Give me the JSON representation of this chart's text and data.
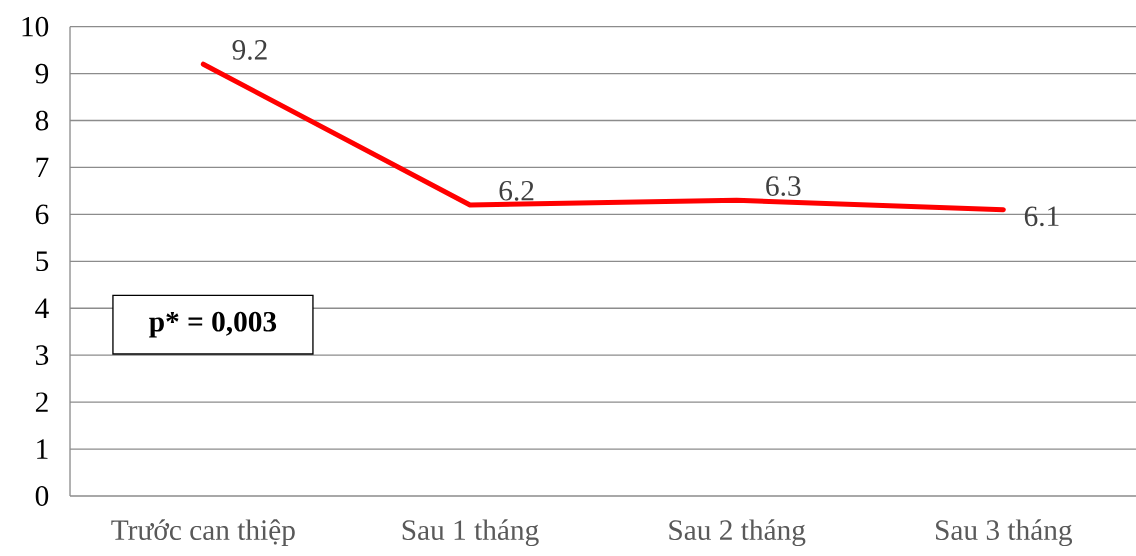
{
  "chart_data": {
    "type": "line",
    "categories": [
      "Trước can thiệp",
      "Sau 1 tháng",
      "Sau 2 tháng",
      "Sau 3 tháng"
    ],
    "values": [
      9.2,
      6.2,
      6.3,
      6.1
    ],
    "color": "#ff0000",
    "ylim": [
      0,
      10
    ],
    "yticks": [
      0,
      1,
      2,
      3,
      4,
      5,
      6,
      7,
      8,
      9,
      10
    ],
    "grid": "y",
    "data_labels": true,
    "marker": "none",
    "line_style": "solid",
    "annotations": [
      "p* = 0,003"
    ]
  }
}
